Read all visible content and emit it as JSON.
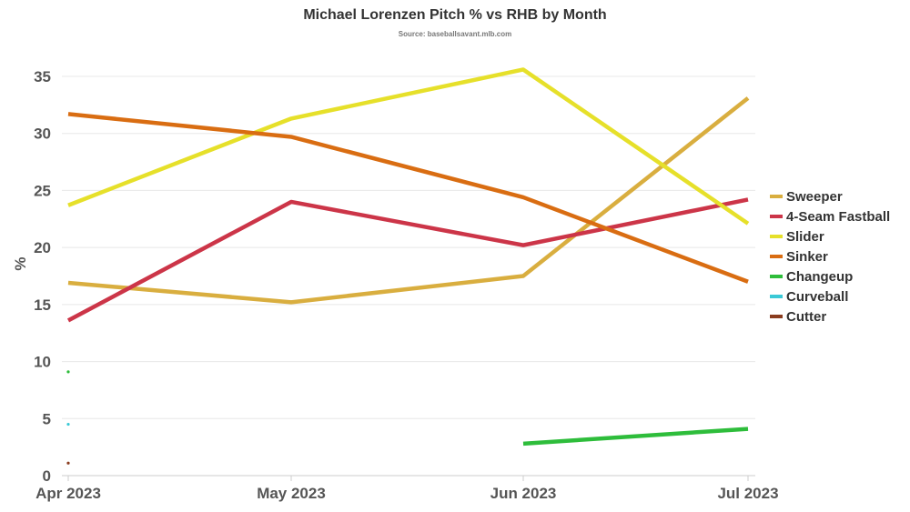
{
  "chart_data": {
    "type": "line",
    "title": "Michael Lorenzen Pitch % vs RHB by Month",
    "subtitle": "Source: baseballsavant.mlb.com",
    "xlabel": "",
    "ylabel": "%",
    "categories": [
      "Apr 2023",
      "May 2023",
      "Jun 2023",
      "Jul 2023"
    ],
    "ylim": [
      0,
      35
    ],
    "yticks": [
      0,
      5,
      10,
      15,
      20,
      25,
      30,
      35
    ],
    "grid": true,
    "legend_position": "right",
    "series": [
      {
        "name": "Sweeper",
        "color": "#d9ae3f",
        "values": [
          16.9,
          15.2,
          17.5,
          33.1
        ]
      },
      {
        "name": "4-Seam Fastball",
        "color": "#cc3548",
        "values": [
          13.6,
          24.0,
          20.2,
          24.2
        ]
      },
      {
        "name": "Slider",
        "color": "#e6e02a",
        "values": [
          23.7,
          31.3,
          35.6,
          22.1
        ]
      },
      {
        "name": "Sinker",
        "color": "#d96d12",
        "values": [
          31.7,
          29.7,
          24.4,
          17.0
        ]
      },
      {
        "name": "Changeup",
        "color": "#2ebd3b",
        "values": [
          9.1,
          null,
          2.8,
          4.1
        ]
      },
      {
        "name": "Curveball",
        "color": "#3bc9d6",
        "values": [
          4.5,
          null,
          null,
          null
        ]
      },
      {
        "name": "Cutter",
        "color": "#8a3c1e",
        "values": [
          1.1,
          null,
          null,
          null
        ]
      }
    ]
  }
}
